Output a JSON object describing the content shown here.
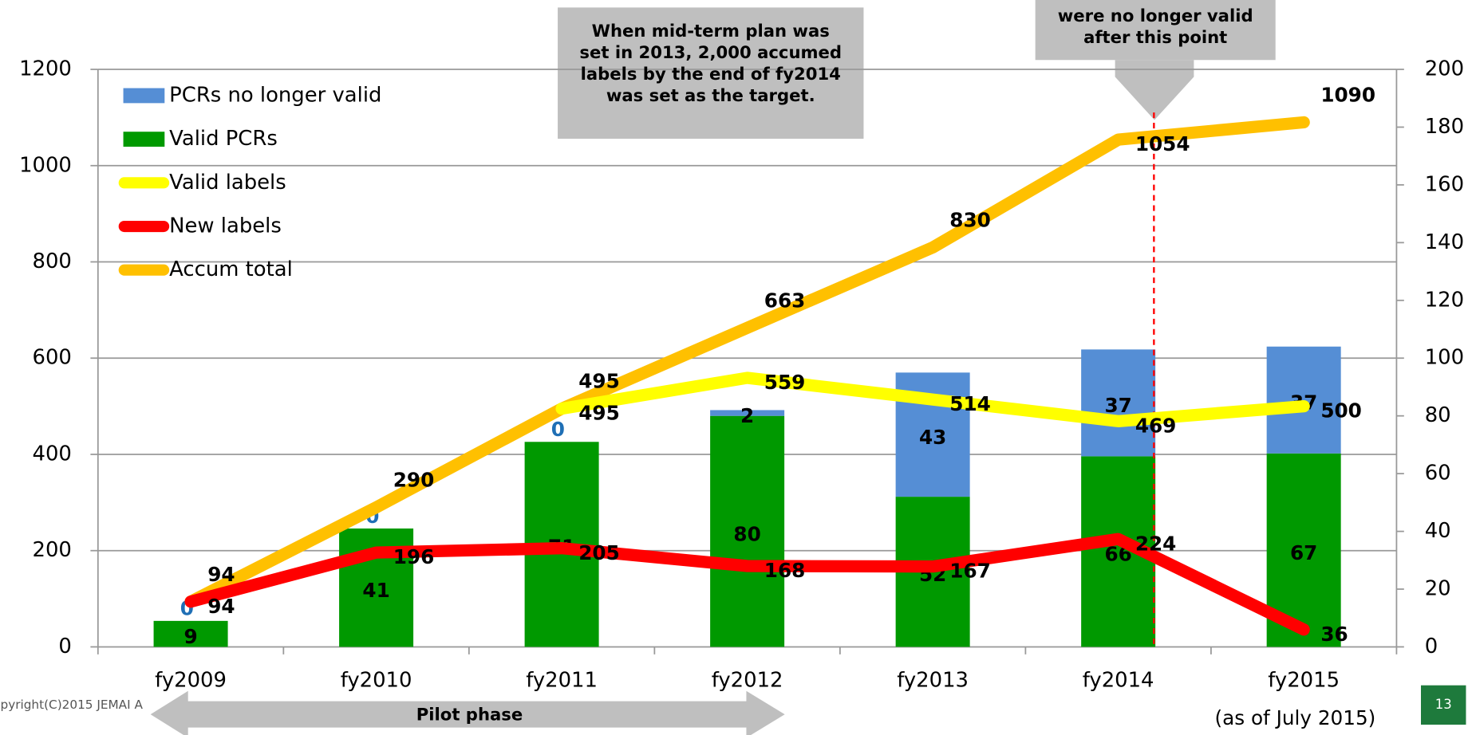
{
  "chart_data": {
    "type": "combo",
    "categories": [
      "fy2009",
      "fy2010",
      "fy2011",
      "fy2012",
      "fy2013",
      "fy2014",
      "fy2015"
    ],
    "ylim": [
      0,
      1200
    ],
    "yticks": [
      0,
      200,
      400,
      600,
      800,
      1000,
      1200
    ],
    "y2lim": [
      0,
      200
    ],
    "y2ticks": [
      0,
      20,
      40,
      60,
      80,
      100,
      120,
      140,
      160,
      180,
      200
    ],
    "grid": true,
    "series": [
      {
        "name": "PCRs no longer valid",
        "type": "bar",
        "axis": "y2",
        "color": "#558ed5",
        "values": [
          0,
          0,
          0,
          2,
          43,
          37,
          37
        ]
      },
      {
        "name": "Valid PCRs",
        "type": "bar",
        "axis": "y2",
        "color": "#009900",
        "values": [
          9,
          41,
          71,
          80,
          52,
          66,
          67
        ]
      },
      {
        "name": "Valid labels",
        "type": "line",
        "color": "#ffff00",
        "values": [
          null,
          null,
          495,
          559,
          514,
          469,
          500
        ]
      },
      {
        "name": "New labels",
        "type": "line",
        "color": "#ff0000",
        "values": [
          94,
          196,
          205,
          168,
          167,
          224,
          36
        ]
      },
      {
        "name": "Accum total",
        "type": "line",
        "color": "#ffc000",
        "values": [
          94,
          290,
          495,
          663,
          830,
          1054,
          1090
        ]
      }
    ],
    "annotations": [
      {
        "lines": [
          "When mid-term plan was",
          "set in 2013, 2,000 accumed",
          "labels by the end of fy2014",
          "was set as the target."
        ]
      },
      {
        "lines": [
          "were no longer valid",
          "after this point"
        ]
      }
    ],
    "phase": "Pilot phase",
    "note": "(as of July 2015)",
    "copyright": "pyright(C)2015 JEMAI A",
    "page_number": "13"
  }
}
